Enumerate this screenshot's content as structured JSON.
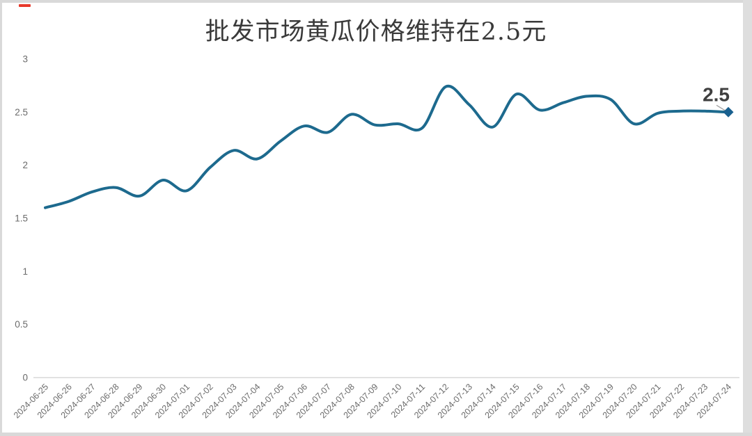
{
  "chart_data": {
    "type": "line",
    "title": "批发市场黄瓜价格维持在2.5元",
    "categories": [
      "2024-06-25",
      "2024-06-26",
      "2024-06-27",
      "2024-06-28",
      "2024-06-29",
      "2024-06-30",
      "2024-07-01",
      "2024-07-02",
      "2024-07-03",
      "2024-07-04",
      "2024-07-05",
      "2024-07-06",
      "2024-07-07",
      "2024-07-08",
      "2024-07-09",
      "2024-07-10",
      "2024-07-11",
      "2024-07-12",
      "2024-07-13",
      "2024-07-14",
      "2024-07-15",
      "2024-07-16",
      "2024-07-17",
      "2024-07-18",
      "2024-07-19",
      "2024-07-20",
      "2024-07-21",
      "2024-07-22",
      "2024-07-23",
      "2024-07-24"
    ],
    "values": [
      1.6,
      1.66,
      1.75,
      1.79,
      1.71,
      1.86,
      1.76,
      1.98,
      2.14,
      2.06,
      2.23,
      2.37,
      2.31,
      2.48,
      2.38,
      2.39,
      2.35,
      2.74,
      2.57,
      2.36,
      2.67,
      2.52,
      2.59,
      2.65,
      2.62,
      2.39,
      2.49,
      2.51,
      2.51,
      2.5
    ],
    "xlabel": "",
    "ylabel": "",
    "ylim": [
      0,
      3
    ],
    "yticks": [
      3,
      2.5,
      2,
      1.5,
      1,
      0.5,
      0
    ],
    "ytick_labels": [
      "3",
      "2.5",
      "2",
      "1.5",
      "1",
      "0.5",
      "0"
    ],
    "grid": false,
    "legend": "none",
    "smooth": true,
    "marker": "diamond-on-last-point",
    "end_label": "2.5",
    "line_color": "#1d6a8e",
    "marker_color": "#19608f",
    "end_label_color": "#3f3f3f",
    "leader_line_color": "#a0a0a0",
    "axis_color": "#d9d9d9",
    "tick_label_color": "#6b6b6b",
    "title_color": "#3a3a3a"
  },
  "decorations": {
    "red_mark_color": "#e8392b"
  }
}
